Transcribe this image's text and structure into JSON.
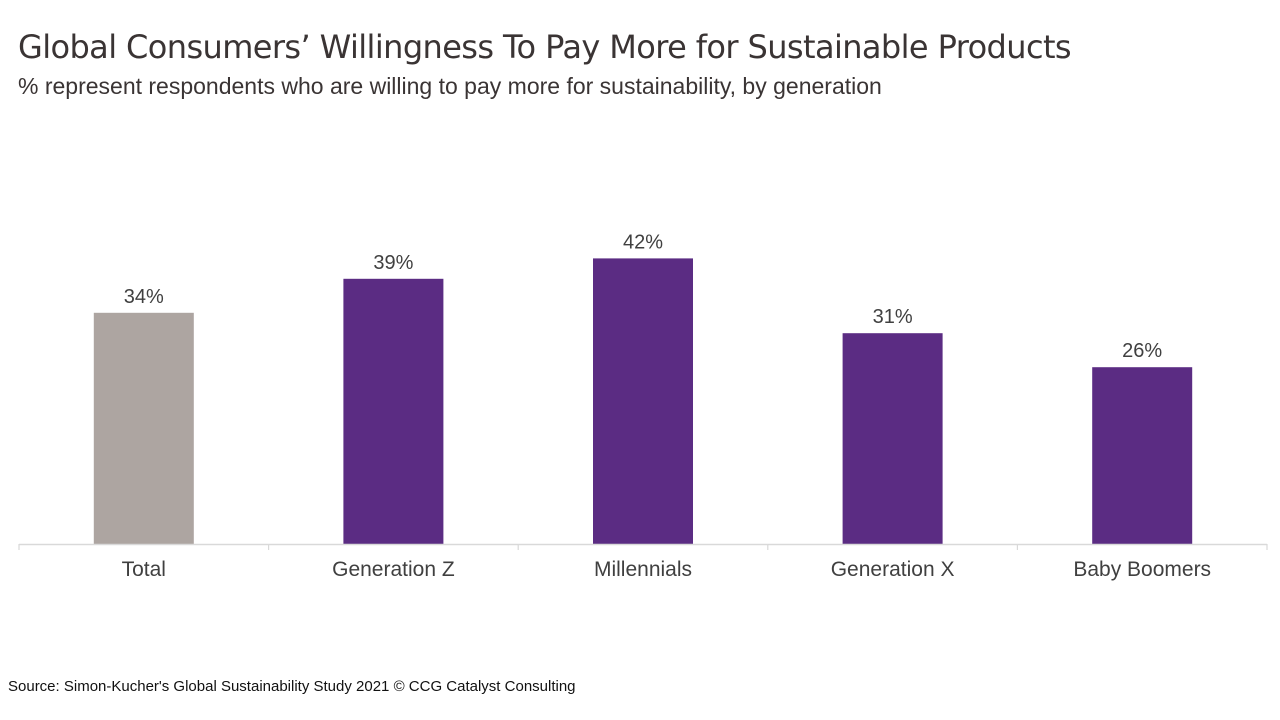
{
  "title": "Global Consumers’ Willingness To Pay More for Sustainable Products",
  "subtitle": "% represent respondents who are willing to pay more for sustainability, by generation",
  "source": "Source: Simon-Kucher's Global Sustainability Study 2021 © CCG Catalyst Consulting",
  "chart_data": {
    "type": "bar",
    "title": "Global Consumers’ Willingness To Pay More for Sustainable Products",
    "subtitle": "% represent respondents who are willing to pay more for sustainability, by generation",
    "categories": [
      "Total",
      "Generation Z",
      "Millennials",
      "Generation X",
      "Baby Boomers"
    ],
    "values": [
      34,
      39,
      42,
      31,
      26
    ],
    "value_labels": [
      "34%",
      "39%",
      "42%",
      "31%",
      "26%"
    ],
    "unit": "%",
    "colors": [
      "#ada5a1",
      "#5b2c83",
      "#5b2c83",
      "#5b2c83",
      "#5b2c83"
    ],
    "xlabel": "",
    "ylabel": "",
    "ylim": [
      0,
      42
    ],
    "grid": false,
    "legend": "none"
  }
}
